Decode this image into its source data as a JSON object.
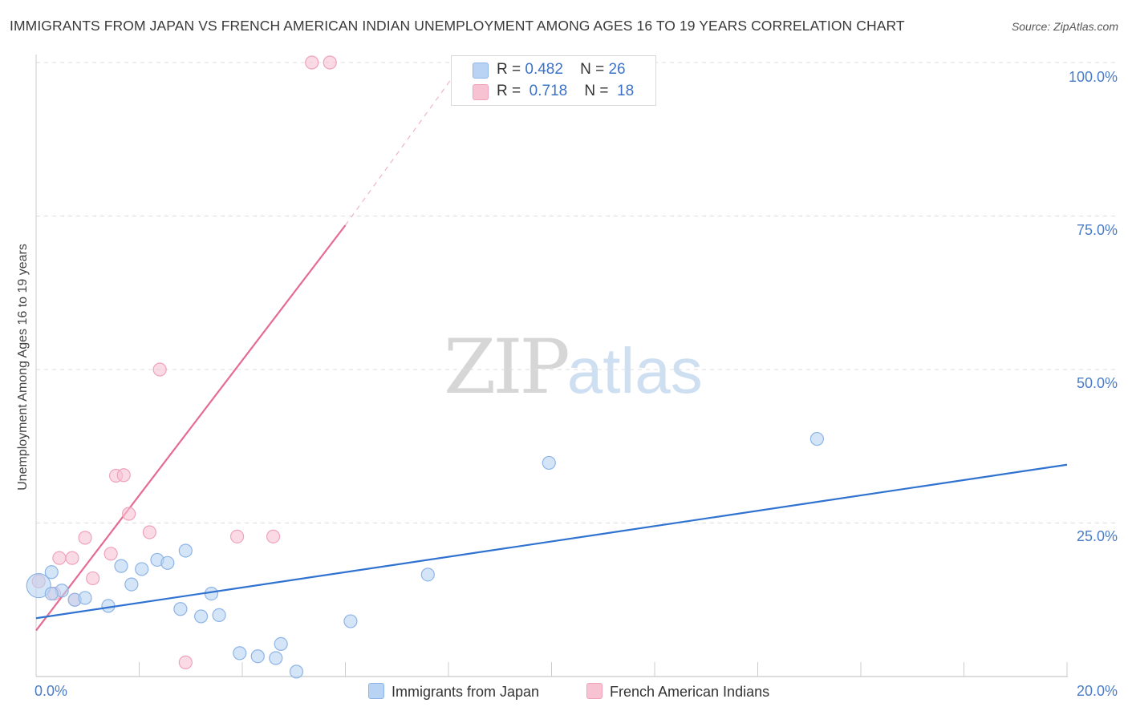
{
  "header": {
    "title": "IMMIGRANTS FROM JAPAN VS FRENCH AMERICAN INDIAN UNEMPLOYMENT AMONG AGES 16 TO 19 YEARS CORRELATION CHART",
    "source": "Source: ZipAtlas.com"
  },
  "watermark": {
    "zip": "ZIP",
    "atlas": "atlas"
  },
  "colors": {
    "blue_fill": "#b9d3f4",
    "blue_stroke": "#8db4e6",
    "blue_line": "#2f72d0",
    "pink_fill": "#f7c3d3",
    "pink_stroke": "#eea3bb",
    "pink_line": "#e56b91",
    "tick_text": "#4a7cc7",
    "grid": "#dddddd"
  },
  "legend": {
    "series": [
      {
        "r_label": "R =",
        "r_value": "0.482",
        "n_label": "N =",
        "n_value": "26"
      },
      {
        "r_label": "R =",
        "r_value": "0.718",
        "n_label": "N =",
        "n_value": "18"
      }
    ]
  },
  "chart_data": {
    "type": "scatter",
    "title": "IMMIGRANTS FROM JAPAN VS FRENCH AMERICAN INDIAN UNEMPLOYMENT AMONG AGES 16 TO 19 YEARS CORRELATION CHART",
    "xlabel": "",
    "ylabel": "Unemployment Among Ages 16 to 19 years",
    "xlim": [
      0,
      20
    ],
    "ylim": [
      0,
      100
    ],
    "x_tick_labels": [
      "0.0%",
      "20.0%"
    ],
    "y_ticks": [
      25,
      50,
      75,
      100
    ],
    "y_tick_labels": [
      "25.0%",
      "50.0%",
      "75.0%",
      "100.0%"
    ],
    "series": [
      {
        "name": "Immigrants from Japan",
        "points": [
          {
            "x": 0.05,
            "y": 14.8,
            "size": "large"
          },
          {
            "x": 0.3,
            "y": 17.0
          },
          {
            "x": 0.5,
            "y": 14.0
          },
          {
            "x": 0.75,
            "y": 12.5
          },
          {
            "x": 0.95,
            "y": 12.8
          },
          {
            "x": 1.4,
            "y": 11.5
          },
          {
            "x": 1.65,
            "y": 18.0
          },
          {
            "x": 1.85,
            "y": 15.0
          },
          {
            "x": 2.05,
            "y": 17.5
          },
          {
            "x": 2.35,
            "y": 19.0
          },
          {
            "x": 2.55,
            "y": 18.5
          },
          {
            "x": 2.8,
            "y": 11.0
          },
          {
            "x": 2.9,
            "y": 20.5
          },
          {
            "x": 3.2,
            "y": 9.8
          },
          {
            "x": 3.4,
            "y": 13.5
          },
          {
            "x": 3.55,
            "y": 10.0
          },
          {
            "x": 3.95,
            "y": 3.8
          },
          {
            "x": 4.3,
            "y": 3.3
          },
          {
            "x": 4.65,
            "y": 3.0
          },
          {
            "x": 4.75,
            "y": 5.3
          },
          {
            "x": 5.05,
            "y": 0.8
          },
          {
            "x": 6.1,
            "y": 9.0
          },
          {
            "x": 7.6,
            "y": 16.6
          },
          {
            "x": 9.95,
            "y": 34.8
          },
          {
            "x": 15.15,
            "y": 38.7
          },
          {
            "x": 0.3,
            "y": 13.5
          }
        ],
        "trend": {
          "x0": 0,
          "y0": 9.5,
          "x1": 20,
          "y1": 34.5
        }
      },
      {
        "name": "French American Indians",
        "points": [
          {
            "x": 0.05,
            "y": 15.5
          },
          {
            "x": 0.35,
            "y": 13.5
          },
          {
            "x": 0.45,
            "y": 19.3
          },
          {
            "x": 0.7,
            "y": 19.3
          },
          {
            "x": 0.95,
            "y": 22.6
          },
          {
            "x": 1.1,
            "y": 16.0
          },
          {
            "x": 1.45,
            "y": 20.0
          },
          {
            "x": 1.55,
            "y": 32.7
          },
          {
            "x": 1.7,
            "y": 32.8
          },
          {
            "x": 1.8,
            "y": 26.5
          },
          {
            "x": 2.2,
            "y": 23.5
          },
          {
            "x": 2.4,
            "y": 50.0
          },
          {
            "x": 2.9,
            "y": 2.3
          },
          {
            "x": 3.9,
            "y": 22.8
          },
          {
            "x": 4.6,
            "y": 22.8
          },
          {
            "x": 5.35,
            "y": 100.0
          },
          {
            "x": 5.7,
            "y": 100.0
          },
          {
            "x": 0.75,
            "y": 12.5
          }
        ],
        "trend": {
          "x0": 0,
          "y0": 7.5,
          "x1": 6.0,
          "y1": 73.5
        },
        "trend_extension": {
          "x0": 6.0,
          "y0": 73.5,
          "x1": 8.2,
          "y1": 99.0
        }
      }
    ]
  }
}
